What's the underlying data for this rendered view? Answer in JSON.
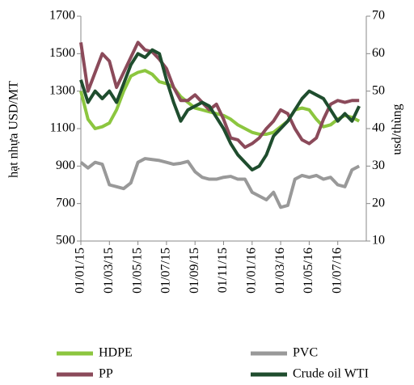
{
  "chart_data": {
    "type": "line",
    "ylabel": "hạt nhựa USD/MT",
    "y2label": "usd/thùng",
    "categories": [
      "01/01/15",
      null,
      null,
      null,
      "01/03/15",
      null,
      null,
      null,
      "01/05/15",
      null,
      null,
      null,
      "01/07/15",
      null,
      null,
      null,
      "01/09/15",
      null,
      null,
      null,
      "01/11/15",
      null,
      null,
      null,
      "01/01/16",
      null,
      null,
      null,
      "01/03/16",
      null,
      null,
      null,
      "01/05/16",
      null,
      null,
      null,
      "01/07/16",
      null,
      null,
      null
    ],
    "ylim": [
      500,
      1700
    ],
    "yticks": [
      500,
      700,
      900,
      1100,
      1300,
      1500,
      1700
    ],
    "y2lim": [
      10,
      70
    ],
    "y2ticks": [
      10,
      20,
      30,
      40,
      50,
      60,
      70
    ],
    "legend": "bottom",
    "series": [
      {
        "name": "HDPE",
        "color": "#8cc63f",
        "values": [
          1300,
          1150,
          1100,
          1110,
          1130,
          1200,
          1300,
          1380,
          1400,
          1410,
          1390,
          1350,
          1340,
          1320,
          1270,
          1240,
          1210,
          1200,
          1190,
          1180,
          1170,
          1150,
          1120,
          1100,
          1080,
          1070,
          1070,
          1080,
          1110,
          1140,
          1200,
          1210,
          1200,
          1150,
          1110,
          1120,
          1150,
          1170,
          1160,
          1140
        ]
      },
      {
        "name": "PVC",
        "color": "#999999",
        "values": [
          920,
          890,
          920,
          910,
          800,
          790,
          780,
          810,
          920,
          940,
          935,
          930,
          920,
          910,
          915,
          925,
          870,
          840,
          830,
          830,
          840,
          845,
          830,
          830,
          760,
          740,
          720,
          760,
          680,
          690,
          830,
          850,
          840,
          850,
          830,
          840,
          800,
          790,
          880,
          900
        ]
      },
      {
        "name": "PP",
        "color": "#8b4a5a",
        "values": [
          1560,
          1300,
          1400,
          1500,
          1460,
          1320,
          1400,
          1480,
          1560,
          1520,
          1510,
          1470,
          1420,
          1320,
          1250,
          1250,
          1280,
          1240,
          1200,
          1230,
          1150,
          1050,
          1040,
          1000,
          1020,
          1050,
          1100,
          1140,
          1200,
          1180,
          1100,
          1040,
          1020,
          1050,
          1150,
          1230,
          1250,
          1240,
          1250,
          1250
        ]
      },
      {
        "name": "Crude oil WTI",
        "color": "#1f4d2e",
        "axis": "y2",
        "values": [
          53,
          47,
          50,
          48,
          50,
          47,
          52,
          57,
          60,
          59,
          61,
          60,
          53,
          47,
          42,
          45,
          46,
          47,
          46,
          43,
          40,
          36,
          33,
          31,
          29,
          30,
          33,
          38,
          40,
          42,
          45,
          48,
          50,
          49,
          48,
          45,
          42,
          44,
          42,
          46
        ]
      }
    ]
  }
}
